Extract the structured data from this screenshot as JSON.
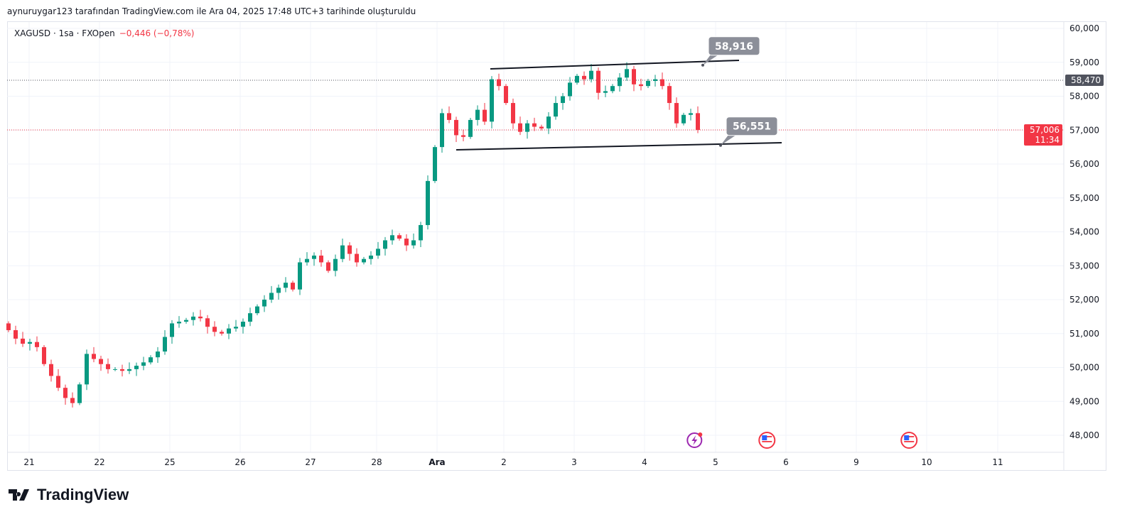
{
  "credit": "aynuruygar123 tarafından TradingView.com ile Ara 04, 2025 17:48 UTC+3 tarihinde oluşturuldu",
  "legend": {
    "symbol": "XAGUSD · 1sa · FXOpen",
    "change": "−0,446 (−0,78%)"
  },
  "logo": {
    "text": "TradingView"
  },
  "colors": {
    "up": "#089981",
    "down": "#f23645",
    "grid": "#f0f3fa",
    "axis_text": "#131722",
    "last_price": "#f23645",
    "level": "#50535e",
    "callout": "#8c8f99"
  },
  "chart_data": {
    "type": "candlestick",
    "title": "XAGUSD · 1sa · FXOpen",
    "ylim": [
      47600,
      60300
    ],
    "yticks": [
      "60,000",
      "59,000",
      "58,000",
      "57,000",
      "56,000",
      "55,000",
      "54,000",
      "53,000",
      "52,000",
      "51,000",
      "50,000",
      "49,000",
      "48,000"
    ],
    "ytick_values": [
      60000,
      59000,
      58000,
      57000,
      56000,
      55000,
      54000,
      53000,
      52000,
      51000,
      50000,
      49000,
      48000
    ],
    "xticks": [
      "21",
      "22",
      "25",
      "26",
      "27",
      "28",
      "Ara",
      "2",
      "3",
      "4",
      "5",
      "6",
      "9",
      "10",
      "11"
    ],
    "closes": [
      51100,
      50850,
      50700,
      50750,
      50600,
      50100,
      49750,
      49400,
      49100,
      48950,
      49500,
      50400,
      50250,
      50100,
      49950,
      49950,
      49900,
      49950,
      50050,
      50150,
      50300,
      50470,
      50900,
      51300,
      51350,
      51400,
      51500,
      51450,
      51200,
      51050,
      51000,
      51150,
      51200,
      51350,
      51600,
      51800,
      52000,
      52200,
      52350,
      52500,
      52300,
      53100,
      53200,
      53300,
      53100,
      52850,
      53200,
      53600,
      53350,
      53100,
      53200,
      53300,
      53500,
      53750,
      53900,
      53800,
      53600,
      53750,
      54200,
      55500,
      56500,
      57500,
      57300,
      56850,
      56800,
      57300,
      57600,
      57250,
      58500,
      58300,
      57800,
      57200,
      56950,
      57200,
      57100,
      57050,
      57400,
      57800,
      58000,
      58400,
      58600,
      58500,
      58750,
      58100,
      58150,
      58300,
      58550,
      58800,
      58350,
      58300,
      58450,
      58500,
      58300,
      57800,
      57200,
      57450,
      57500,
      57006
    ],
    "open_first": 51300,
    "price_lines": [
      {
        "label": "58,470",
        "value": 58470,
        "kind": "level"
      },
      {
        "label": "57,006",
        "value": 57006,
        "kind": "last",
        "countdown": "11:34"
      }
    ],
    "trendlines": [
      {
        "from": [
          67.8,
          58806
        ],
        "to": [
          102.8,
          59058
        ],
        "callout": "58,916",
        "anchor": [
          97.7,
          58916
        ]
      },
      {
        "from": [
          63.0,
          56419
        ],
        "to": [
          108.8,
          56628
        ],
        "callout": "56,551",
        "anchor": [
          100.2,
          56551
        ]
      }
    ],
    "events": [
      {
        "type": "lightning-event-icon",
        "xtick": "5",
        "offset": -0.3
      },
      {
        "type": "us-flag-event-icon",
        "xtick": "6",
        "offset": -0.27
      },
      {
        "type": "us-flag-event-icon",
        "xtick": "10",
        "offset": -0.25
      }
    ]
  }
}
